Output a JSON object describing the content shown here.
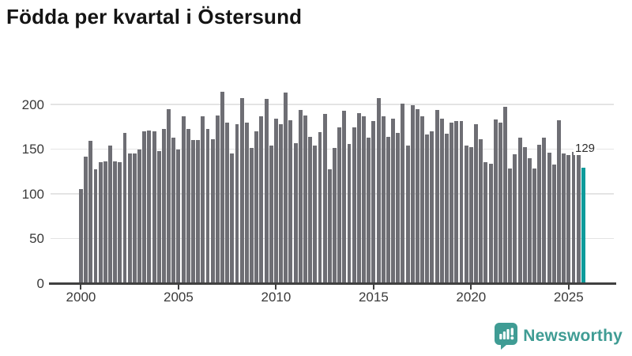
{
  "title": "Födda per kvartal i Östersund",
  "annotation": {
    "latest_value_label": "129"
  },
  "logo": {
    "text": "Newsworthy",
    "icon": "newsworthy-speech-bubble-chart-icon",
    "color": "#3f9c94"
  },
  "colors": {
    "bar": "#6e6e74",
    "highlight": "#0d9b9b",
    "grid": "#e4e4e4",
    "axis": "#404040",
    "tick_text": "#3a3a3a",
    "title_text": "#141414"
  },
  "chart_data": {
    "type": "bar",
    "title": "Födda per kvartal i Östersund",
    "xlabel": "",
    "ylabel": "",
    "x_start_quarter": "2000-Q1",
    "x_end_quarter": "2025-Q4",
    "x_tick_labels": [
      "2000",
      "2005",
      "2010",
      "2015",
      "2020",
      "2025"
    ],
    "y_ticks": [
      0,
      50,
      100,
      150,
      200
    ],
    "ylim": [
      0,
      220
    ],
    "grid": "horizontal",
    "legend": "none",
    "series_name": "Födda",
    "highlight_last_bar": true,
    "highlight_last_value": 129,
    "values": [
      105,
      142,
      159,
      127,
      135,
      136,
      154,
      136,
      135,
      168,
      145,
      145,
      150,
      170,
      171,
      170,
      148,
      173,
      195,
      163,
      150,
      187,
      173,
      160,
      160,
      187,
      173,
      161,
      188,
      214,
      180,
      145,
      178,
      207,
      180,
      151,
      170,
      187,
      206,
      154,
      184,
      178,
      213,
      182,
      157,
      194,
      188,
      164,
      154,
      169,
      189,
      127,
      151,
      174,
      193,
      156,
      174,
      190,
      187,
      163,
      181,
      207,
      187,
      164,
      184,
      168,
      201,
      154,
      199,
      195,
      187,
      166,
      170,
      194,
      184,
      167,
      180,
      181,
      181,
      154,
      152,
      178,
      161,
      135,
      134,
      183,
      180,
      197,
      128,
      144,
      163,
      152,
      140,
      128,
      155,
      163,
      146,
      133,
      182,
      145,
      143,
      147,
      148,
      129
    ]
  }
}
